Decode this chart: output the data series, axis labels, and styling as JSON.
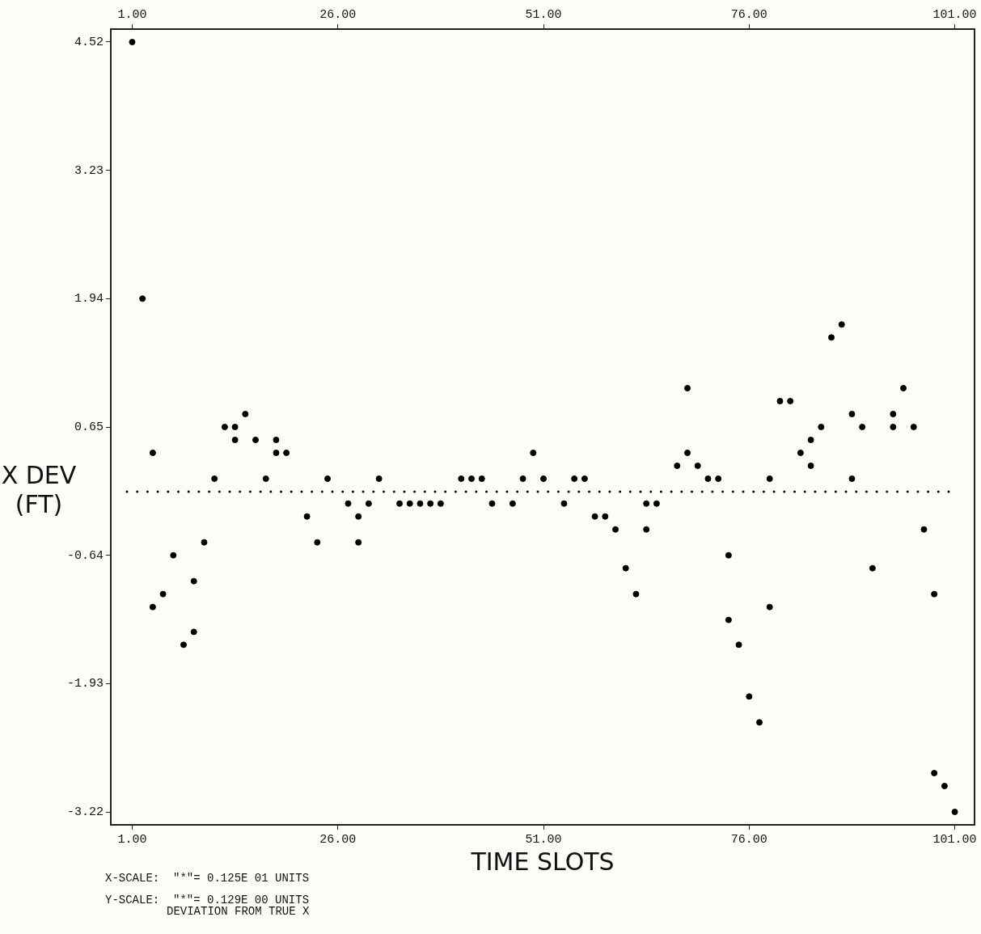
{
  "chart_data": {
    "type": "scatter",
    "xlabel": "TIME SLOTS",
    "ylabel": "X DEV\n(FT)",
    "annotations": [
      "X-SCALE:  \"*\"= 0.125E 01 UNITS",
      "Y-SCALE:  \"*\"= 0.129E 00 UNITS",
      "DEVIATION FROM TRUE X"
    ],
    "x": [
      1,
      2.25,
      3.5,
      3.5,
      4.75,
      6,
      7.25,
      8.5,
      8.5,
      9.75,
      11,
      12.25,
      13.5,
      13.5,
      14.75,
      16,
      17.25,
      18.5,
      18.5,
      19.75,
      22.25,
      23.5,
      24.75,
      27.25,
      28.5,
      28.5,
      29.75,
      31,
      33.5,
      34.75,
      36,
      37.25,
      38.5,
      41,
      42.25,
      43.5,
      44.75,
      47.25,
      48.5,
      49.75,
      51,
      53.5,
      54.75,
      56,
      57.25,
      58.5,
      59.75,
      61,
      62.25,
      63.5,
      63.5,
      64.75,
      67.25,
      68.5,
      68.5,
      69.75,
      71,
      72.25,
      73.5,
      73.5,
      74.75,
      76,
      77.25,
      78.5,
      78.5,
      79.75,
      81,
      82.25,
      83.5,
      83.5,
      84.75,
      86,
      87.25,
      88.5,
      88.5,
      89.75,
      91,
      93.5,
      93.5,
      94.75,
      96,
      97.25,
      98.5,
      98.5,
      99.75,
      101
    ],
    "values": [
      4.52,
      1.94,
      0.39,
      -1.16,
      -1.03,
      -0.64,
      -1.54,
      -0.9,
      -1.41,
      -0.51,
      0.13,
      0.65,
      0.65,
      0.52,
      0.78,
      0.52,
      0.13,
      0.52,
      0.39,
      0.39,
      -0.25,
      -0.51,
      0.13,
      -0.12,
      -0.25,
      -0.51,
      -0.12,
      0.13,
      -0.12,
      -0.12,
      -0.12,
      -0.12,
      -0.12,
      0.13,
      0.13,
      0.13,
      -0.12,
      -0.12,
      0.13,
      0.39,
      0.13,
      -0.12,
      0.13,
      0.13,
      -0.25,
      -0.25,
      -0.38,
      -0.77,
      -1.03,
      -0.12,
      -0.38,
      -0.12,
      0.26,
      1.04,
      0.39,
      0.26,
      0.13,
      0.13,
      -0.64,
      -1.29,
      -1.54,
      -2.06,
      -2.32,
      0.13,
      -1.16,
      0.91,
      0.91,
      0.39,
      0.52,
      0.26,
      0.65,
      1.55,
      1.68,
      0.78,
      0.13,
      0.65,
      -0.77,
      0.78,
      0.65,
      1.04,
      0.65,
      -0.38,
      -1.03,
      -2.83,
      -2.96,
      -3.22
    ],
    "color": "#000000",
    "marker": "circle",
    "xlim": [
      -1.6,
      103.4
    ],
    "ylim": [
      -3.35,
      4.65
    ],
    "xticks": [
      {
        "value": 1,
        "label": "1.00"
      },
      {
        "value": 26,
        "label": "26.00"
      },
      {
        "value": 51,
        "label": "51.00"
      },
      {
        "value": 76,
        "label": "76.00"
      },
      {
        "value": 101,
        "label": "101.00"
      }
    ],
    "x2lim": [
      -1.6,
      103.4
    ],
    "x2ticks": [
      {
        "value": 1,
        "label": "1.00"
      },
      {
        "value": 26,
        "label": "26.00"
      },
      {
        "value": 51,
        "label": "51.00"
      },
      {
        "value": 76,
        "label": "76.00"
      },
      {
        "value": 101,
        "label": "101.00"
      }
    ],
    "yticks": [
      -3.22,
      -1.93,
      -0.64,
      0.65,
      1.94,
      3.23,
      4.52
    ],
    "ref_lines": [
      {
        "axis": "y",
        "value": 0,
        "line_style": "dotted",
        "color": "#000000"
      }
    ],
    "grid": false,
    "legend": false
  }
}
